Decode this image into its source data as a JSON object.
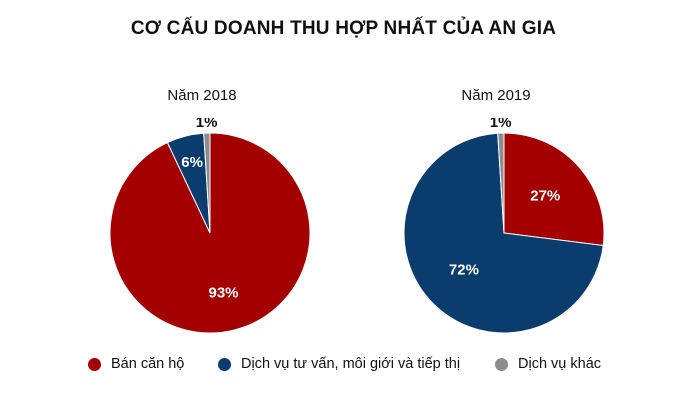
{
  "title": "CƠ CẤU DOANH THU HỢP NHẤT CỦA AN GIA",
  "colors": {
    "ban_can_ho": "#a50000",
    "dich_vu_tu_van": "#0b3c6e",
    "dich_vu_khac": "#8c8c8c"
  },
  "legend": [
    {
      "label": "Bán căn hộ",
      "color": "#a50000"
    },
    {
      "label": "Dịch vụ tư vấn, môi giới và tiếp thị",
      "color": "#0b3c6e"
    },
    {
      "label": "Dịch vụ khác",
      "color": "#8c8c8c"
    }
  ],
  "chart_data": [
    {
      "type": "pie",
      "title": "Năm 2018",
      "categories": [
        "Bán căn hộ",
        "Dịch vụ tư vấn, môi giới và tiếp thị",
        "Dịch vụ khác"
      ],
      "values": [
        93,
        6,
        1
      ],
      "labels": [
        "93%",
        "6%",
        "1%"
      ]
    },
    {
      "type": "pie",
      "title": "Năm 2019",
      "categories": [
        "Bán căn hộ",
        "Dịch vụ tư vấn, môi giới và tiếp thị",
        "Dịch vụ khác"
      ],
      "values": [
        27,
        72,
        1
      ],
      "labels": [
        "27%",
        "72%",
        "1%"
      ]
    }
  ]
}
